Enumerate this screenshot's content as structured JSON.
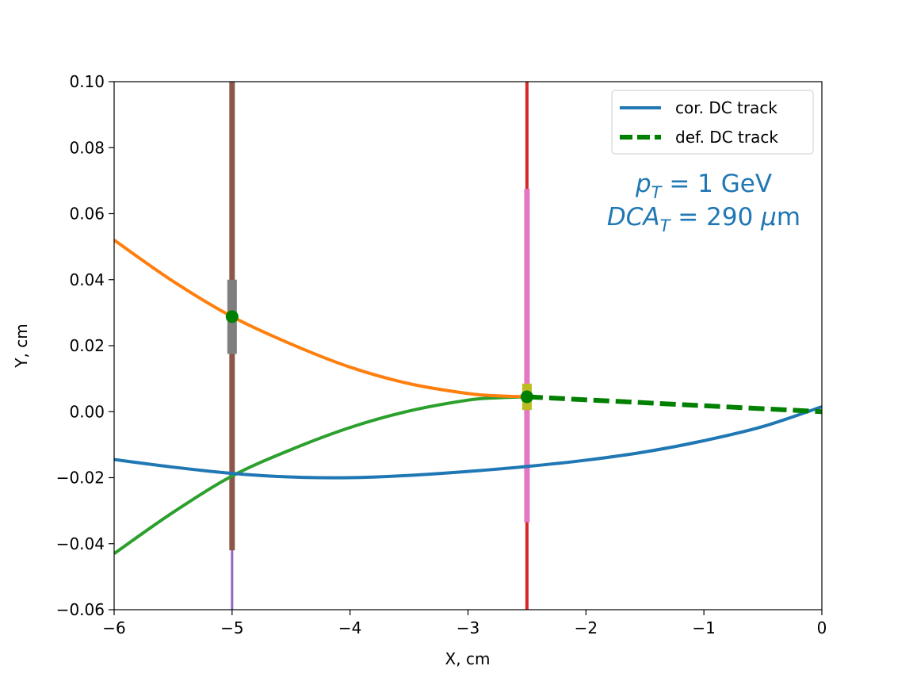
{
  "chart_data": {
    "type": "line",
    "title": "",
    "xlabel": "X, cm",
    "ylabel": "Y, cm",
    "xlim": [
      -6,
      0
    ],
    "ylim": [
      -0.06,
      0.1
    ],
    "xticks": [
      -6,
      -5,
      -4,
      -3,
      -2,
      -1,
      0
    ],
    "xtick_labels": [
      "−6",
      "−5",
      "−4",
      "−3",
      "−2",
      "−1",
      "0"
    ],
    "yticks": [
      -0.06,
      -0.04,
      -0.02,
      0.0,
      0.02,
      0.04,
      0.06,
      0.08,
      0.1
    ],
    "ytick_labels": [
      "−0.06",
      "−0.04",
      "−0.02",
      "0.00",
      "0.02",
      "0.04",
      "0.06",
      "0.08",
      "0.10"
    ],
    "grid": false,
    "legend_position": "top-right",
    "legend": [
      {
        "label": "cor. DC track",
        "color": "#1f77b4",
        "style": "solid"
      },
      {
        "label": "def. DC track",
        "color": "#008000",
        "style": "dashed"
      }
    ],
    "series": [
      {
        "key": "cor_dc_track",
        "color": "#1f77b4",
        "style": "solid",
        "x": [
          -6,
          -5.5,
          -5,
          -4.5,
          -4,
          -3.5,
          -3,
          -2.5,
          -2,
          -1.5,
          -1,
          -0.5,
          0
        ],
        "y": [
          -0.0145,
          -0.0168,
          -0.0187,
          -0.0198,
          -0.02,
          -0.0193,
          -0.0181,
          -0.0166,
          -0.0147,
          -0.0122,
          -0.0088,
          -0.0045,
          0.0015
        ]
      },
      {
        "key": "def_dc_track",
        "color": "#008000",
        "style": "dashed",
        "x": [
          -2.5,
          0
        ],
        "y": [
          0.0045,
          0.0
        ]
      },
      {
        "key": "upper_arc",
        "color": "#ff7f0e",
        "style": "solid",
        "x": [
          -6,
          -5.5,
          -5,
          -4.5,
          -4,
          -3.5,
          -3,
          -2.75,
          -2.5
        ],
        "y": [
          0.052,
          0.0395,
          0.0288,
          0.0205,
          0.0135,
          0.0085,
          0.0055,
          0.0048,
          0.0045
        ]
      },
      {
        "key": "lower_arc",
        "color": "#2ca02c",
        "style": "solid",
        "x": [
          -6,
          -5.5,
          -5,
          -4.5,
          -4,
          -3.5,
          -3,
          -2.75,
          -2.5
        ],
        "y": [
          -0.043,
          -0.0305,
          -0.0195,
          -0.0115,
          -0.0048,
          0.0002,
          0.0035,
          0.0042,
          0.0045
        ]
      }
    ],
    "vertical_segments": [
      {
        "key": "layer1_full",
        "x": -5,
        "y": [
          -0.06,
          0.1
        ],
        "color": "#9467bd",
        "width": 3
      },
      {
        "key": "layer1_seg",
        "x": -5,
        "y": [
          -0.042,
          0.1
        ],
        "color": "#8c564b",
        "width": 7
      },
      {
        "key": "layer1_hit",
        "x": -5,
        "y": [
          0.0175,
          0.04
        ],
        "color": "#7f7f7f",
        "width": 12
      },
      {
        "key": "layer2_full",
        "x": -2.5,
        "y": [
          -0.06,
          0.1
        ],
        "color": "#d62728",
        "width": 4
      },
      {
        "key": "layer2_seg",
        "x": -2.5,
        "y": [
          -0.0335,
          0.0675
        ],
        "color": "#e377c2",
        "width": 7
      },
      {
        "key": "layer2_hit",
        "x": -2.5,
        "y": [
          0.0005,
          0.0085
        ],
        "color": "#bcbd22",
        "width": 12
      }
    ],
    "points": [
      {
        "x": -5,
        "y": 0.0288,
        "color": "#008000"
      },
      {
        "x": -2.5,
        "y": 0.0045,
        "color": "#008000"
      }
    ],
    "annotation": {
      "line1_var": "p",
      "line1_sub": "T",
      "line1_rest": " = 1 GeV",
      "line2_var": "DCA",
      "line2_sub": "T",
      "line2_rest1": " = 290 ",
      "line2_mu": "μ",
      "line2_unit": "m",
      "color": "#1f77b4"
    }
  }
}
